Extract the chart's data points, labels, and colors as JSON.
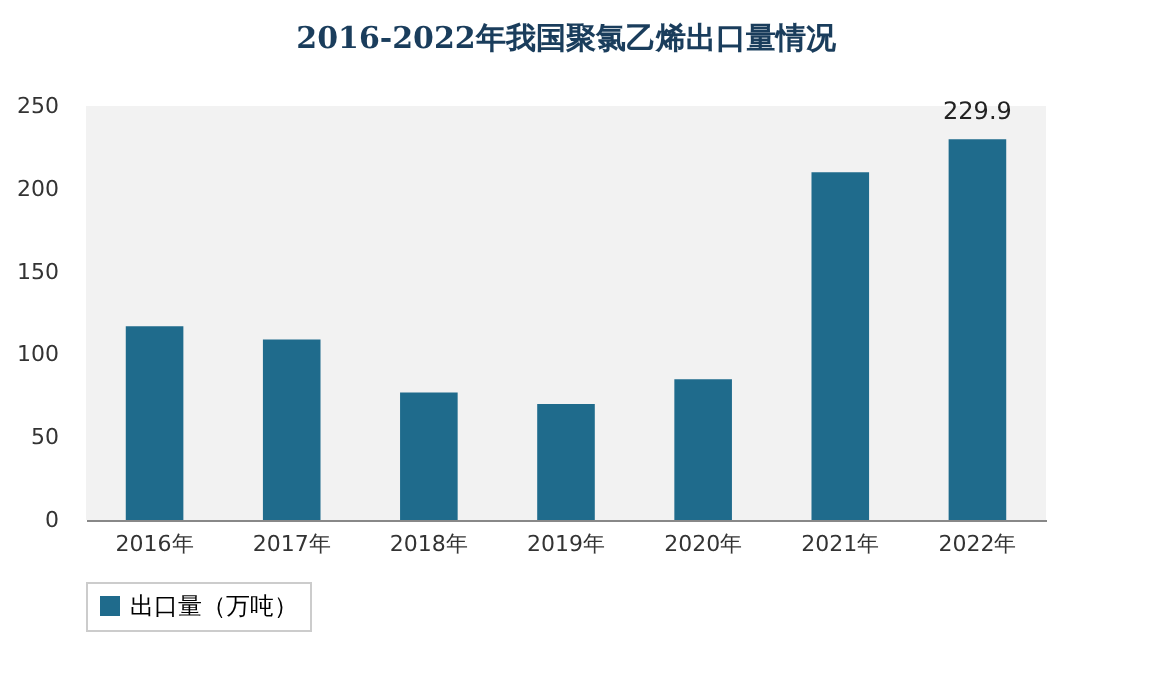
{
  "chart_data": {
    "type": "bar",
    "title": "2016-2022年我国聚氯乙烯出口量情况",
    "categories": [
      "2016年",
      "2017年",
      "2018年",
      "2019年",
      "2020年",
      "2021年",
      "2022年"
    ],
    "series": [
      {
        "name": "出口量（万吨）",
        "color": "#1f6b8c",
        "values": [
          117,
          109,
          77,
          70,
          85,
          210,
          229.9
        ],
        "value_labels": [
          null,
          null,
          null,
          null,
          null,
          null,
          "229.9"
        ]
      }
    ],
    "ylim": [
      0,
      250
    ],
    "yticks": [
      0,
      50,
      100,
      150,
      200,
      250
    ],
    "grid": false,
    "legend": "bottom"
  }
}
